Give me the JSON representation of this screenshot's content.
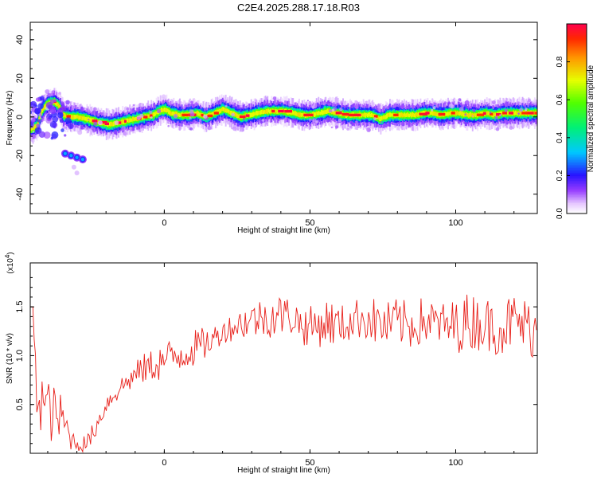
{
  "title": "C2E4.2025.288.17.18.R03",
  "colors": {
    "snr_line": "#e8201a",
    "axis": "#000000"
  },
  "chart_data": [
    {
      "type": "heatmap",
      "title": "C2E4.2025.288.17.18.R03",
      "xlabel": "Height of straight line (km)",
      "ylabel": "Frequency (Hz)",
      "xlim": [
        -46,
        128
      ],
      "ylim": [
        -50,
        49
      ],
      "x_ticks": [
        0,
        50,
        100
      ],
      "y_ticks": [
        -40,
        -20,
        0,
        20,
        40
      ],
      "colorbar": {
        "label": "Normalized spectral amplitude",
        "range": [
          0.0,
          1.0
        ],
        "ticks": [
          0.0,
          0.2,
          0.4,
          0.6,
          0.8
        ]
      },
      "ridge": {
        "x": [
          -46,
          -44,
          -42,
          -40,
          -38,
          -36,
          -35,
          -33,
          -30,
          -27,
          -25,
          -22,
          -19,
          -16,
          -13,
          -10,
          -7,
          -4,
          -2,
          0,
          2,
          5,
          8,
          11,
          14,
          17,
          20,
          23,
          26,
          29,
          32,
          35,
          38,
          41,
          44,
          47,
          50,
          53,
          56,
          59,
          62,
          65,
          68,
          71,
          74,
          77,
          80,
          83,
          86,
          89,
          92,
          95,
          98,
          101,
          104,
          107,
          110,
          113,
          116,
          119,
          122,
          125,
          128
        ],
        "freq_hz": [
          -6,
          -5,
          4,
          7,
          8,
          5,
          1,
          0,
          0,
          -1,
          -2,
          -3,
          -4,
          -3,
          -2,
          -1,
          0,
          1,
          3,
          4,
          2,
          1,
          1,
          2,
          0,
          2,
          4,
          2,
          0,
          1,
          2,
          3,
          3,
          3,
          2,
          1,
          1,
          2,
          3,
          2,
          1,
          1,
          1,
          1,
          -1,
          1,
          1,
          1,
          1,
          2,
          2,
          1,
          2,
          2,
          1,
          1,
          2,
          1,
          2,
          2,
          2,
          2,
          2
        ]
      },
      "secondary_blob": {
        "x": [
          -34,
          -32,
          -30,
          -28
        ],
        "freq_hz": [
          -19,
          -20,
          -21,
          -22
        ]
      }
    },
    {
      "type": "line",
      "xlabel": "Height of straight line (km)",
      "ylabel": "SNR (10 * v/v)",
      "y_multiplier_label": "(x10",
      "y_multiplier_exp": "4",
      "xlim": [
        -46,
        128
      ],
      "ylim": [
        0,
        1.95
      ],
      "x_ticks": [
        0,
        50,
        100
      ],
      "y_ticks": [
        0.5,
        1.0,
        1.5
      ],
      "series": [
        {
          "anchor_x": [
            -46,
            -44,
            -42,
            -40,
            -38,
            -35,
            -32,
            -29,
            -26,
            -23,
            -20,
            -16,
            -12,
            -8,
            -4,
            0,
            4,
            8,
            12,
            16,
            20,
            24,
            28,
            32,
            36,
            40,
            44,
            48,
            52,
            56,
            60,
            64,
            68,
            72,
            76,
            80,
            84,
            88,
            92,
            96,
            100,
            104,
            108,
            112,
            116,
            120,
            124,
            128
          ],
          "anchor_y": [
            1.5,
            0.7,
            0.55,
            0.45,
            0.4,
            0.35,
            0.15,
            0.08,
            0.12,
            0.3,
            0.5,
            0.65,
            0.75,
            0.85,
            0.9,
            0.95,
            1.0,
            1.05,
            1.1,
            1.15,
            1.25,
            1.3,
            1.35,
            1.38,
            1.4,
            1.42,
            1.4,
            1.3,
            1.3,
            1.35,
            1.3,
            1.35,
            1.4,
            1.35,
            1.3,
            1.35,
            1.3,
            1.35,
            1.35,
            1.3,
            1.3,
            1.35,
            1.35,
            1.3,
            1.3,
            1.35,
            1.3,
            1.25
          ],
          "noise_amplitude": [
            0.0,
            0.35,
            0.35,
            0.35,
            0.3,
            0.25,
            0.12,
            0.07,
            0.1,
            0.1,
            0.1,
            0.12,
            0.12,
            0.15,
            0.18,
            0.2,
            0.2,
            0.2,
            0.18,
            0.15,
            0.12,
            0.15,
            0.18,
            0.2,
            0.22,
            0.22,
            0.2,
            0.2,
            0.22,
            0.25,
            0.22,
            0.2,
            0.22,
            0.25,
            0.25,
            0.25,
            0.25,
            0.25,
            0.22,
            0.25,
            0.28,
            0.3,
            0.3,
            0.28,
            0.3,
            0.3,
            0.3,
            0.3
          ]
        }
      ]
    }
  ]
}
